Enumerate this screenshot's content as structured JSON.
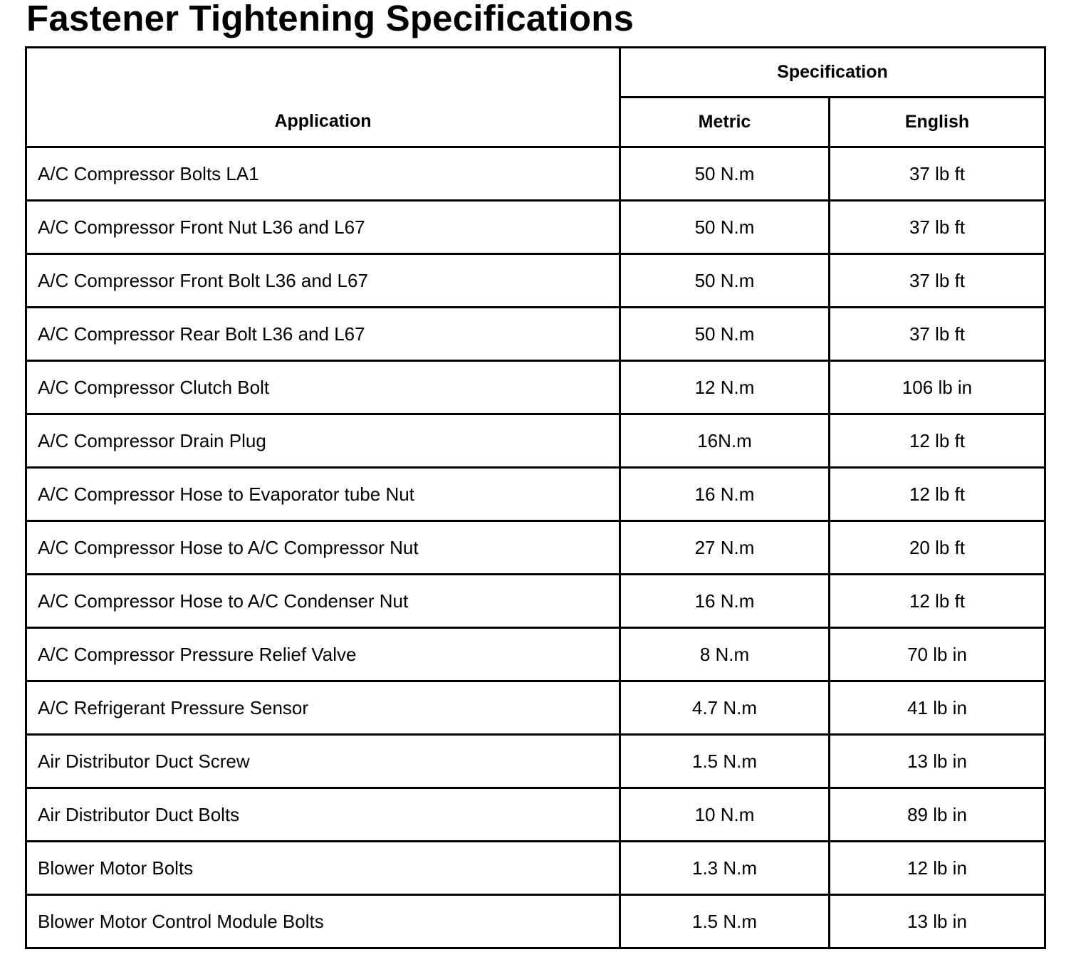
{
  "header": {
    "title": "Fastener Tightening Specifications"
  },
  "table": {
    "columns": {
      "application": "Application",
      "specification": "Specification",
      "metric": "Metric",
      "english": "English"
    },
    "rows": [
      [
        "A/C Compressor Bolts LA1",
        "50 N.m",
        "37 lb ft"
      ],
      [
        "A/C Compressor Front Nut L36 and L67",
        "50 N.m",
        "37 lb ft"
      ],
      [
        "A/C Compressor Front Bolt L36 and L67",
        "50 N.m",
        "37 lb ft"
      ],
      [
        "A/C Compressor Rear Bolt L36 and L67",
        "50 N.m",
        "37 lb ft"
      ],
      [
        "A/C Compressor Clutch Bolt",
        "12 N.m",
        "106 lb in"
      ],
      [
        "A/C Compressor Drain Plug",
        "16N.m",
        "12 lb ft"
      ],
      [
        "A/C Compressor Hose to Evaporator tube Nut",
        "16 N.m",
        "12 lb ft"
      ],
      [
        "A/C Compressor Hose to A/C Compressor Nut",
        "27 N.m",
        "20 lb ft"
      ],
      [
        "A/C Compressor Hose to A/C Condenser Nut",
        "16 N.m",
        "12 lb ft"
      ],
      [
        "A/C Compressor Pressure Relief Valve",
        "8 N.m",
        "70 lb in"
      ],
      [
        "A/C Refrigerant Pressure Sensor",
        "4.7 N.m",
        "41 lb in"
      ],
      [
        "Air Distributor Duct Screw",
        "1.5 N.m",
        "13 lb in"
      ],
      [
        "Air Distributor Duct Bolts",
        "10 N.m",
        "89 lb in"
      ],
      [
        "Blower Motor Bolts",
        "1.3 N.m",
        "12 lb in"
      ],
      [
        "Blower Motor Control Module Bolts",
        "1.5 N.m",
        "13 lb in"
      ]
    ]
  }
}
